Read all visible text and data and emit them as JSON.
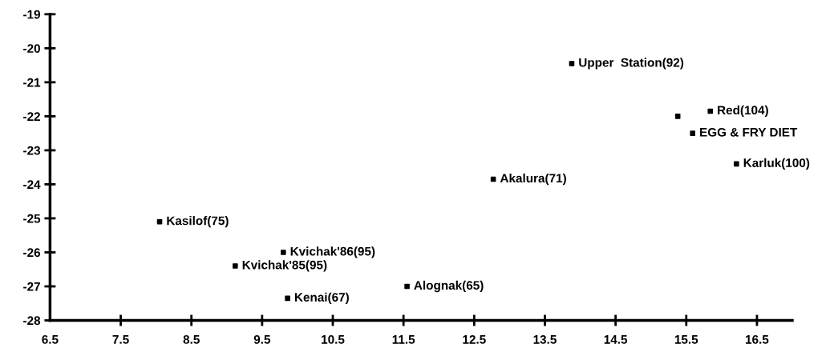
{
  "chart_data": {
    "type": "scatter",
    "x": [
      8.05,
      9.8,
      9.12,
      9.86,
      11.55,
      12.77,
      13.88,
      15.38,
      15.84,
      15.59,
      16.21
    ],
    "series": [
      {
        "color": "#000000",
        "values": [
          -25.1,
          -26.0,
          -26.4,
          -27.35,
          -27.0,
          -23.85,
          -20.45,
          -22.0,
          -21.85,
          -22.5,
          -23.4
        ]
      }
    ],
    "marker": "square",
    "xlim": [
      6.5,
      17.0
    ],
    "xticks": [
      6.5,
      7.5,
      8.5,
      9.5,
      10.5,
      11.5,
      12.5,
      13.5,
      14.5,
      15.5,
      16.5
    ],
    "ylim": [
      -28,
      -19
    ],
    "yticks": [
      -28,
      -27,
      -26,
      -25,
      -24,
      -23,
      -22,
      -21,
      -20,
      -19
    ],
    "grid": false,
    "legend": false,
    "annotations": [
      {
        "text": "Kasilof(75)",
        "x": 8.05,
        "y": -25.1
      },
      {
        "text": "Kvichak'86(95)",
        "x": 9.8,
        "y": -26.0
      },
      {
        "text": "Kvichak'85(95)",
        "x": 9.12,
        "y": -26.4
      },
      {
        "text": "Kenai(67)",
        "x": 9.86,
        "y": -27.35
      },
      {
        "text": "Alognak(65)",
        "x": 11.55,
        "y": -27.0
      },
      {
        "text": "Akalura(71)",
        "x": 12.77,
        "y": -23.85
      },
      {
        "text": "Upper  Station(92)",
        "x": 13.88,
        "y": -20.45
      },
      {
        "text": "Red(104)",
        "x": 15.84,
        "y": -21.85
      },
      {
        "text": "EGG & FRY DIET",
        "x": 15.59,
        "y": -22.5
      },
      {
        "text": "Karluk(100)",
        "x": 16.21,
        "y": -23.4
      }
    ]
  }
}
